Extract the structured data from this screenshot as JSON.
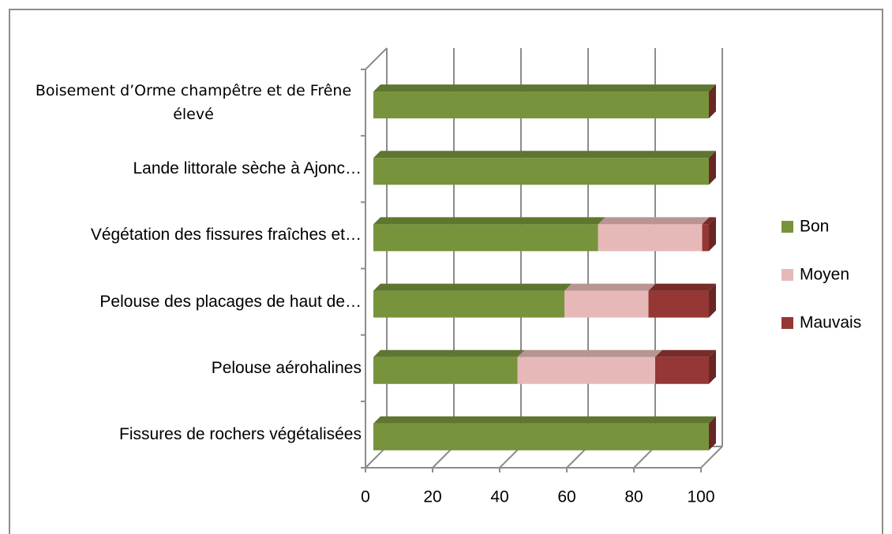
{
  "chart_data": {
    "type": "bar3d_stacked_horizontal",
    "categories": [
      "Boisement d’Orme champêtre et de Frêne élevé",
      "Lande littorale sèche à Ajonc…",
      "Végétation des fissures fraîches et…",
      "Pelouse des placages de haut de…",
      "Pelouse aérohalines",
      "Fissures de rochers végétalisées"
    ],
    "series": [
      {
        "name": "Bon",
        "color": "#77933c",
        "values": [
          100,
          100,
          67,
          57,
          43,
          100
        ]
      },
      {
        "name": "Moyen",
        "color": "#e6b9b8",
        "values": [
          0,
          0,
          31,
          25,
          41,
          0
        ]
      },
      {
        "name": "Mauvais",
        "color": "#953735",
        "values": [
          0,
          0,
          2,
          18,
          16,
          0
        ]
      }
    ],
    "xlim": [
      0,
      100
    ],
    "xticks": [
      0,
      20,
      40,
      60,
      80,
      100
    ],
    "grid": true,
    "legend": "right"
  }
}
